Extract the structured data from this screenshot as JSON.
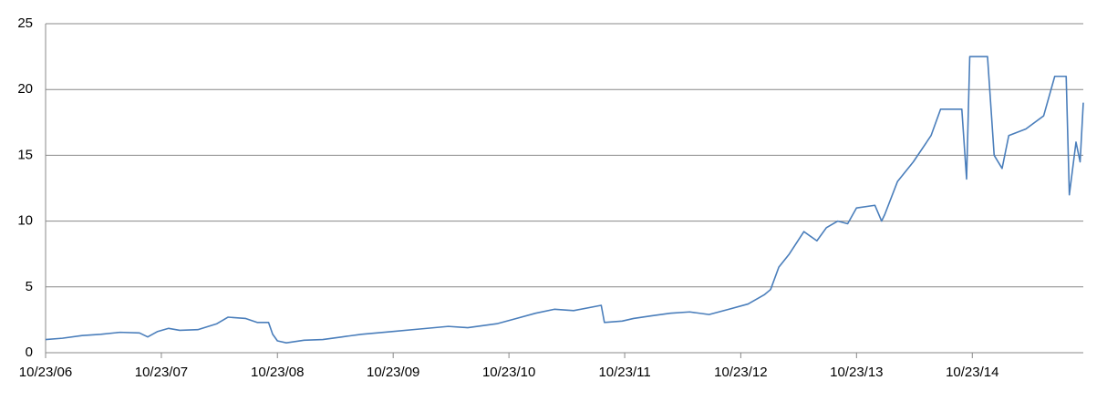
{
  "chart_data": {
    "type": "line",
    "x": [
      "2006-10-23",
      "2006-12-15",
      "2007-02-15",
      "2007-04-15",
      "2007-06-15",
      "2007-08-15",
      "2007-09-10",
      "2007-10-10",
      "2007-11-15",
      "2007-12-20",
      "2008-02-15",
      "2008-04-15",
      "2008-05-20",
      "2008-07-15",
      "2008-08-20",
      "2008-09-25",
      "2008-10-08",
      "2008-10-23",
      "2008-11-20",
      "2009-01-15",
      "2009-03-15",
      "2009-05-15",
      "2009-07-15",
      "2009-10-15",
      "2010-01-15",
      "2010-04-15",
      "2010-06-15",
      "2010-09-15",
      "2010-11-15",
      "2011-01-15",
      "2011-03-15",
      "2011-05-15",
      "2011-08-10",
      "2011-08-20",
      "2011-10-15",
      "2011-11-20",
      "2012-01-15",
      "2012-03-15",
      "2012-05-15",
      "2012-07-15",
      "2012-09-15",
      "2012-11-15",
      "2013-01-05",
      "2013-01-25",
      "2013-02-20",
      "2013-03-25",
      "2013-05-10",
      "2013-06-20",
      "2013-07-20",
      "2013-08-25",
      "2013-09-25",
      "2013-10-23",
      "2013-12-20",
      "2014-01-10",
      "2014-01-20",
      "2014-03-01",
      "2014-04-20",
      "2014-06-15",
      "2014-07-15",
      "2014-09-20",
      "2014-10-05",
      "2014-10-15",
      "2014-10-28",
      "2014-12-10",
      "2014-12-31",
      "2015-01-25",
      "2015-02-15",
      "2015-04-10",
      "2015-06-05",
      "2015-07-10",
      "2015-08-15",
      "2015-08-25",
      "2015-09-15",
      "2015-09-28",
      "2015-10-08"
    ],
    "series": [
      {
        "color": "#4a7ebb",
        "values": [
          1.0,
          1.1,
          1.3,
          1.4,
          1.55,
          1.5,
          1.2,
          1.6,
          1.85,
          1.7,
          1.75,
          2.2,
          2.7,
          2.6,
          2.3,
          2.3,
          1.4,
          0.9,
          0.75,
          0.95,
          1.0,
          1.2,
          1.4,
          1.6,
          1.8,
          2.0,
          1.9,
          2.2,
          2.6,
          3.0,
          3.3,
          3.2,
          3.6,
          2.3,
          2.4,
          2.6,
          2.8,
          3.0,
          3.1,
          2.9,
          3.3,
          3.7,
          4.4,
          4.8,
          6.5,
          7.5,
          9.2,
          8.5,
          9.5,
          10.0,
          9.8,
          11.0,
          11.2,
          10.0,
          10.5,
          13.0,
          14.5,
          16.5,
          18.5,
          18.5,
          13.2,
          22.5,
          22.5,
          22.5,
          15.0,
          14.0,
          16.5,
          17.0,
          18.0,
          21.0,
          21.0,
          12.0,
          16.0,
          14.5,
          19.0
        ]
      }
    ],
    "xlim": [
      "2006-10-23",
      "2015-10-08"
    ],
    "xticks": [
      {
        "value": "2006-10-23",
        "label": "10/23/06"
      },
      {
        "value": "2007-10-23",
        "label": "10/23/07"
      },
      {
        "value": "2008-10-23",
        "label": "10/23/08"
      },
      {
        "value": "2009-10-23",
        "label": "10/23/09"
      },
      {
        "value": "2010-10-23",
        "label": "10/23/10"
      },
      {
        "value": "2011-10-23",
        "label": "10/23/11"
      },
      {
        "value": "2012-10-23",
        "label": "10/23/12"
      },
      {
        "value": "2013-10-23",
        "label": "10/23/13"
      },
      {
        "value": "2014-10-23",
        "label": "10/23/14"
      }
    ],
    "ylim": [
      0,
      25
    ],
    "yticks": [
      0,
      5,
      10,
      15,
      20,
      25
    ],
    "grid": true
  }
}
